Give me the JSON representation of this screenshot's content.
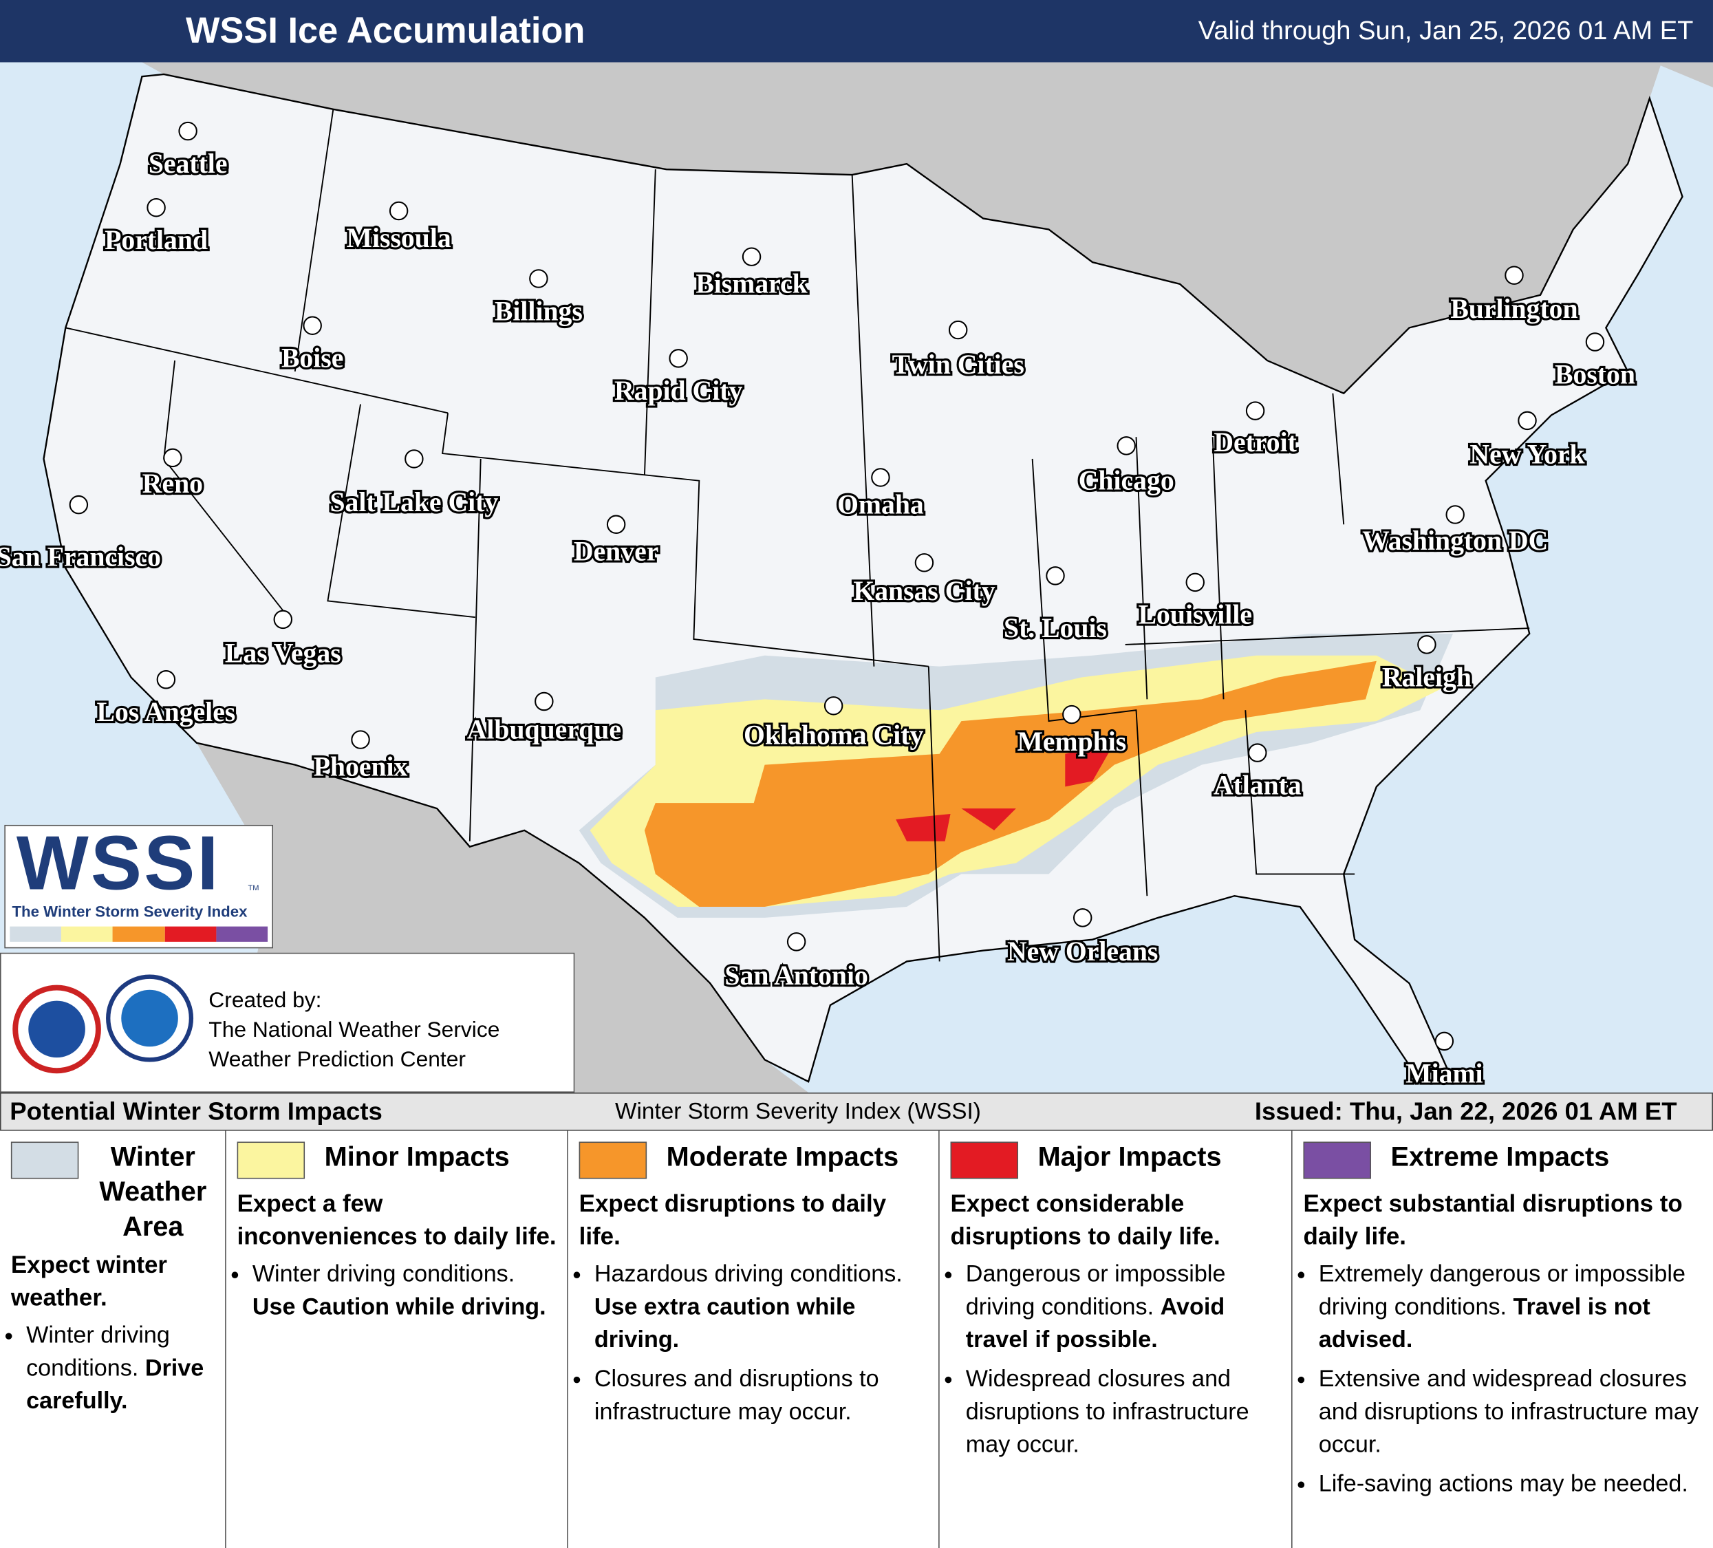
{
  "header": {
    "title": "WSSI Ice Accumulation",
    "valid": "Valid through Sun, Jan 25, 2026 01 AM ET"
  },
  "cities": [
    "Seattle",
    "Portland",
    "Missoula",
    "Billings",
    "Bismarck",
    "Boise",
    "Rapid City",
    "Twin Cities",
    "Burlington",
    "Boston",
    "Reno",
    "Salt Lake City",
    "Detroit",
    "New York",
    "Chicago",
    "Omaha",
    "San Francisco",
    "Denver",
    "Washington DC",
    "Kansas City",
    "St. Louis",
    "Louisville",
    "Las Vegas",
    "Raleigh",
    "Los Angeles",
    "Oklahoma City",
    "Albuquerque",
    "Memphis",
    "Phoenix",
    "Atlanta",
    "New Orleans",
    "San Antonio",
    "Miami"
  ],
  "logo": {
    "mark": "WSSI",
    "tm": "TM",
    "subtitle": "The Winter Storm Severity Index"
  },
  "credits": [
    "Created by:",
    "The National Weather Service",
    "Weather Prediction Center"
  ],
  "legend_header": {
    "left": "Potential Winter Storm Impacts",
    "center": "Winter Storm Severity Index (WSSI)",
    "issued": "Issued: Thu, Jan 22, 2026 01 AM ET"
  },
  "categories": [
    {
      "label": "Winter Weather Area",
      "color": "#d3dde5",
      "headline": "Expect winter weather.",
      "bullets": [
        {
          "text": "Winter driving conditions.",
          "emphasis": "Drive carefully."
        }
      ]
    },
    {
      "label": "Minor Impacts",
      "color": "#fbf59f",
      "headline": "Expect a few inconveniences to daily life.",
      "bullets": [
        {
          "text": "Winter driving conditions.",
          "emphasis": "Use Caution while driving."
        }
      ]
    },
    {
      "label": "Moderate Impacts",
      "color": "#f6962a",
      "headline": "Expect disruptions to daily life.",
      "bullets": [
        {
          "text": "Hazardous driving conditions.",
          "emphasis": "Use extra caution while driving."
        },
        {
          "text": "Closures and disruptions to infrastructure may occur."
        }
      ]
    },
    {
      "label": "Major Impacts",
      "color": "#e31b23",
      "headline": "Expect considerable disruptions to daily life.",
      "bullets": [
        {
          "text": "Dangerous or impossible driving conditions.",
          "emphasis": "Avoid travel if possible."
        },
        {
          "text": "Widespread closures and disruptions to infrastructure may occur."
        }
      ]
    },
    {
      "label": "Extreme Impacts",
      "color": "#7a4fa3",
      "headline": "Expect substantial disruptions to daily life.",
      "bullets": [
        {
          "text": "Extremely dangerous or impossible driving conditions.",
          "emphasis": "Travel is not advised."
        },
        {
          "text": "Extensive and widespread closures and disruptions to infrastructure may occur."
        },
        {
          "text": "Life-saving actions may be needed."
        }
      ]
    }
  ]
}
